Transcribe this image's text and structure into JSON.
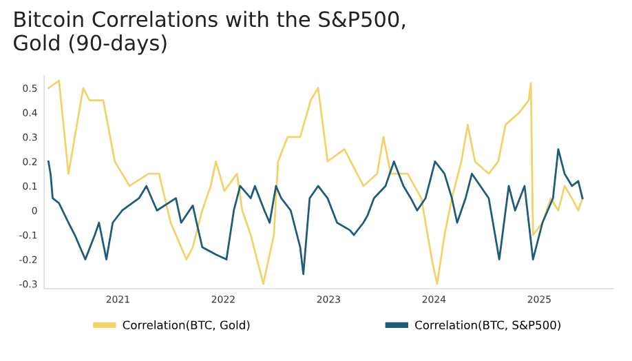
{
  "chart_data": {
    "type": "line",
    "title": "Bitcoin Correlations with the S&P500,\nGold (90-days)",
    "xlim": [
      2020.3,
      2025.7
    ],
    "xticks": [
      2021,
      2022,
      2023,
      2024,
      2025
    ],
    "ylim": [
      -0.32,
      0.55
    ],
    "yticks": [
      -0.3,
      -0.2,
      -0.1,
      0,
      0.1,
      0.2,
      0.3,
      0.4,
      0.5
    ],
    "grid": false,
    "legend": "bottom",
    "line_style": "solid",
    "marker": "none",
    "series": [
      {
        "name": "Correlation(BTC, Gold)",
        "color": "#f2d36b",
        "x": [
          2020.34,
          2020.44,
          2020.53,
          2020.67,
          2020.73,
          2020.86,
          2020.97,
          2021.11,
          2021.29,
          2021.39,
          2021.5,
          2021.65,
          2021.71,
          2021.8,
          2021.88,
          2021.93,
          2022.01,
          2022.13,
          2022.18,
          2022.26,
          2022.38,
          2022.48,
          2022.52,
          2022.61,
          2022.73,
          2022.83,
          2022.9,
          2022.99,
          2023.15,
          2023.33,
          2023.46,
          2023.52,
          2023.59,
          2023.75,
          2023.88,
          2023.98,
          2024.03,
          2024.1,
          2024.17,
          2024.26,
          2024.32,
          2024.39,
          2024.52,
          2024.61,
          2024.68,
          2024.81,
          2024.9,
          2024.92,
          2024.94,
          2025.03,
          2025.11,
          2025.18,
          2025.24,
          2025.31,
          2025.37,
          2025.41
        ],
        "values": [
          0.5,
          0.53,
          0.15,
          0.5,
          0.45,
          0.45,
          0.2,
          0.1,
          0.15,
          0.15,
          -0.05,
          -0.2,
          -0.15,
          0,
          0.1,
          0.2,
          0.08,
          0.15,
          0,
          -0.1,
          -0.3,
          -0.1,
          0.2,
          0.3,
          0.3,
          0.45,
          0.5,
          0.2,
          0.25,
          0.1,
          0.15,
          0.3,
          0.15,
          0.15,
          0.05,
          -0.2,
          -0.3,
          -0.1,
          0.05,
          0.2,
          0.35,
          0.2,
          0.15,
          0.2,
          0.35,
          0.4,
          0.45,
          0.52,
          -0.1,
          -0.05,
          0.05,
          0,
          0.1,
          0.05,
          0,
          0.05
        ]
      },
      {
        "name": "Correlation(BTC, S&P500)",
        "color": "#1e5c78",
        "x": [
          2020.34,
          2020.36,
          2020.38,
          2020.44,
          2020.53,
          2020.59,
          2020.69,
          2020.78,
          2020.82,
          2020.89,
          2020.95,
          2021.04,
          2021.2,
          2021.27,
          2021.37,
          2021.55,
          2021.6,
          2021.71,
          2021.8,
          2021.93,
          2022.03,
          2022.1,
          2022.16,
          2022.26,
          2022.3,
          2022.39,
          2022.44,
          2022.5,
          2022.55,
          2022.64,
          2022.73,
          2022.76,
          2022.82,
          2022.9,
          2022.99,
          2023.08,
          2023.2,
          2023.24,
          2023.33,
          2023.37,
          2023.43,
          2023.54,
          2023.62,
          2023.71,
          2023.78,
          2023.84,
          2023.92,
          2024.01,
          2024.1,
          2024.17,
          2024.22,
          2024.3,
          2024.36,
          2024.52,
          2024.62,
          2024.71,
          2024.77,
          2024.86,
          2024.94,
          2025.03,
          2025.08,
          2025.13,
          2025.18,
          2025.24,
          2025.31,
          2025.37,
          2025.41
        ],
        "values": [
          0.2,
          0.15,
          0.05,
          0.03,
          -0.05,
          -0.1,
          -0.2,
          -0.1,
          -0.05,
          -0.2,
          -0.05,
          0,
          0.05,
          0.1,
          0,
          0.05,
          -0.05,
          0.02,
          -0.15,
          -0.18,
          -0.2,
          0,
          0.1,
          0.05,
          0.1,
          0,
          -0.05,
          0.1,
          0.05,
          0,
          -0.15,
          -0.26,
          0.05,
          0.1,
          0.05,
          -0.05,
          -0.08,
          -0.1,
          -0.05,
          -0.02,
          0.05,
          0.1,
          0.2,
          0.1,
          0.05,
          0,
          0.05,
          0.2,
          0.15,
          0.05,
          -0.05,
          0.05,
          0.15,
          0.05,
          -0.2,
          0.1,
          0,
          0.1,
          -0.2,
          -0.05,
          0,
          0.05,
          0.25,
          0.15,
          0.1,
          0.12,
          0.05
        ]
      }
    ]
  }
}
